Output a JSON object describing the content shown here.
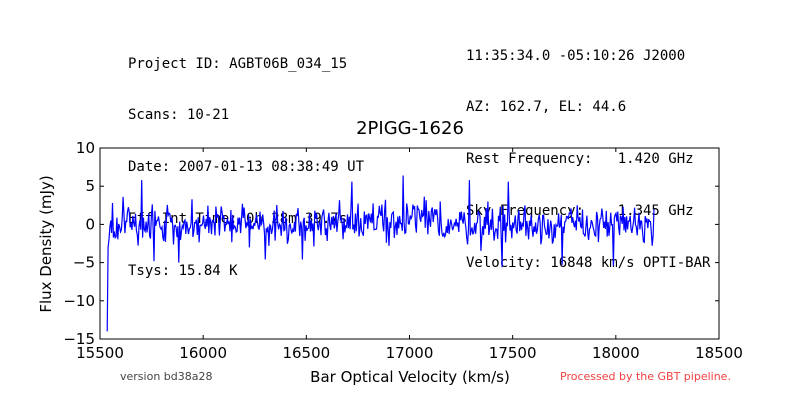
{
  "header_left": [
    "Project ID: AGBT06B_034_15",
    "Scans: 10-21",
    "Date: 2007-01-13 08:38:49 UT",
    "Eff Int Time: 0h 28m 39.7s",
    "Tsys: 15.84 K"
  ],
  "header_right": [
    "11:35:34.0 -05:10:26 J2000",
    "AZ: 162.7, EL: 44.6",
    "Rest Frequency:   1.420 GHz",
    "Sky Frequency:    1.345 GHz",
    "Velocity: 16848 km/s OPTI-BAR"
  ],
  "footer": {
    "version": "version bd38a28",
    "pipeline": "Processed by the GBT pipeline.",
    "pipeline_color": "#f04040"
  },
  "chart_data": {
    "type": "line",
    "title": "2PIGG-1626",
    "xlabel": "Bar Optical Velocity (km/s)",
    "ylabel": "Flux Density (mJy)",
    "xlim": [
      15500,
      18500
    ],
    "ylim": [
      -15,
      10
    ],
    "xticks": [
      15500,
      16000,
      16500,
      17000,
      17500,
      18000,
      18500
    ],
    "yticks": [
      -15,
      -10,
      -5,
      0,
      5,
      10
    ],
    "grid": false,
    "line_color": "#0000ff",
    "x_range": [
      15535,
      18185
    ],
    "samples": 620,
    "noise_amplitude_mjy": 2.2,
    "points": [
      {
        "x": 15535,
        "y": -14.0
      },
      {
        "x": 15542,
        "y": -2.0
      },
      {
        "x": 15550,
        "y": 0.5
      },
      {
        "x": 15560,
        "y": 2.8
      },
      {
        "x": 15610,
        "y": 3.6
      },
      {
        "x": 15700,
        "y": 5.8
      },
      {
        "x": 15760,
        "y": -4.8
      },
      {
        "x": 15880,
        "y": -5.0
      },
      {
        "x": 16300,
        "y": -4.6
      },
      {
        "x": 16480,
        "y": -4.6
      },
      {
        "x": 16720,
        "y": 5.6
      },
      {
        "x": 16970,
        "y": 6.4
      },
      {
        "x": 17290,
        "y": 5.8
      },
      {
        "x": 17480,
        "y": 5.6
      },
      {
        "x": 17450,
        "y": -5.6
      },
      {
        "x": 17740,
        "y": -5.3
      },
      {
        "x": 17990,
        "y": -5.4
      },
      {
        "x": 18185,
        "y": 2.0
      }
    ]
  }
}
